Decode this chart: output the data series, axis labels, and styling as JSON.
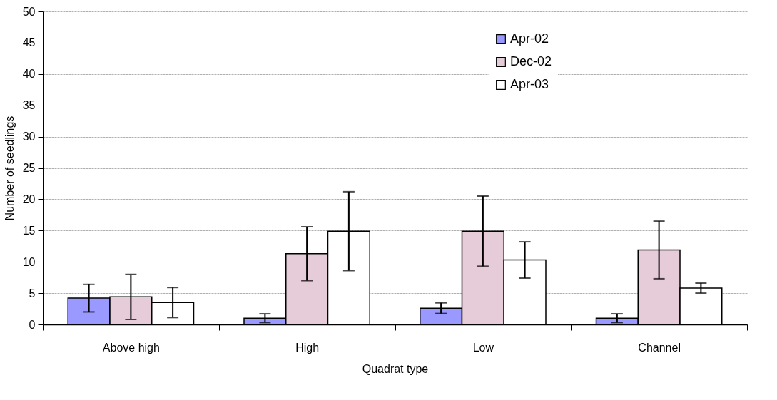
{
  "chart_data": {
    "type": "bar",
    "xlabel": "Quadrat type",
    "ylabel": "Number of seedlings",
    "categories": [
      "Above high",
      "High",
      "Low",
      "Channel"
    ],
    "series": [
      {
        "name": "Apr-02",
        "color": "#9999ff",
        "values": [
          4.2,
          1.0,
          2.6,
          1.0
        ],
        "errors": [
          2.2,
          0.7,
          0.85,
          0.7
        ]
      },
      {
        "name": "Dec-02",
        "color": "#e6ccd9",
        "values": [
          4.4,
          11.3,
          14.9,
          11.9
        ],
        "errors": [
          3.6,
          4.3,
          5.6,
          4.6
        ]
      },
      {
        "name": "Apr-03",
        "color": "#ffffff",
        "values": [
          3.5,
          14.9,
          10.3,
          5.8
        ],
        "errors": [
          2.4,
          6.3,
          2.9,
          0.8
        ]
      }
    ],
    "ylim": [
      0,
      50
    ],
    "yticks": [
      0,
      5,
      10,
      15,
      20,
      25,
      30,
      35,
      40,
      45,
      50
    ],
    "grid": "y",
    "legend": "top right"
  }
}
